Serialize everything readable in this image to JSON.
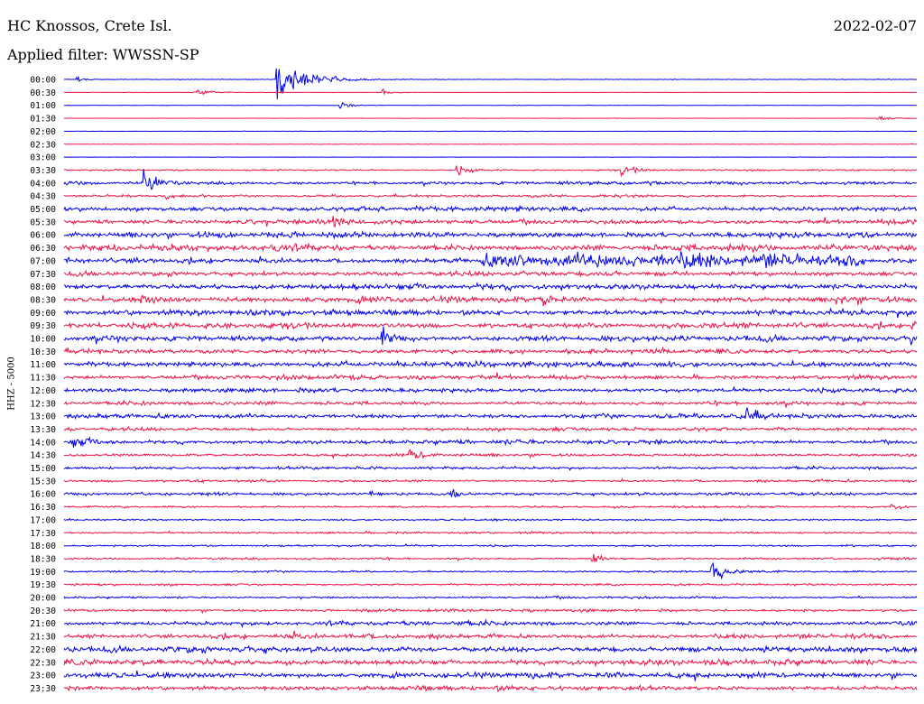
{
  "header": {
    "station": "HC Knossos, Crete Isl.",
    "date": "2022-02-07",
    "filter": "Applied filter: WWSSN-SP"
  },
  "colors": {
    "blue": "#0000ee",
    "red": "#ee1144"
  },
  "chart_data": {
    "type": "helicorder",
    "ylabel": "HHZ - 5000",
    "row_labels": [
      "00:00",
      "00:30",
      "01:00",
      "01:30",
      "02:00",
      "02:30",
      "03:00",
      "03:30",
      "04:00",
      "04:30",
      "05:00",
      "05:30",
      "06:00",
      "06:30",
      "07:00",
      "07:30",
      "08:00",
      "08:30",
      "09:00",
      "09:30",
      "10:00",
      "10:30",
      "11:00",
      "11:30",
      "12:00",
      "12:30",
      "13:00",
      "13:30",
      "14:00",
      "14:30",
      "15:00",
      "15:30",
      "16:00",
      "16:30",
      "17:00",
      "17:30",
      "18:00",
      "18:30",
      "19:00",
      "19:30",
      "20:00",
      "20:30",
      "21:00",
      "21:30",
      "22:00",
      "22:30",
      "23:00",
      "23:30"
    ],
    "row_colors": [
      "blue",
      "red"
    ],
    "noise_levels": [
      0.4,
      0.3,
      0.3,
      0.3,
      0.4,
      0.3,
      0.3,
      1.2,
      2.6,
      2.0,
      3.6,
      3.6,
      4.2,
      4.6,
      4.2,
      3.6,
      4.2,
      4.2,
      4.2,
      4.2,
      4.2,
      3.6,
      4.2,
      3.6,
      3.2,
      2.8,
      3.2,
      2.6,
      3.2,
      2.2,
      2.2,
      1.8,
      2.2,
      1.6,
      1.4,
      1.6,
      1.4,
      1.6,
      1.4,
      1.6,
      1.6,
      2.2,
      3.2,
      3.6,
      4.2,
      4.2,
      4.2,
      3.6
    ],
    "events": [
      {
        "row": 0,
        "x_fraction": 0.016,
        "amplitude": 5,
        "duration_fraction": 0.006
      },
      {
        "row": 0,
        "x_fraction": 0.25,
        "amplitude": 28,
        "duration_fraction": 0.03
      },
      {
        "row": 1,
        "x_fraction": 0.155,
        "amplitude": 4,
        "duration_fraction": 0.02
      },
      {
        "row": 1,
        "x_fraction": 0.375,
        "amplitude": 5,
        "duration_fraction": 0.01
      },
      {
        "row": 2,
        "x_fraction": 0.325,
        "amplitude": 4,
        "duration_fraction": 0.012
      },
      {
        "row": 3,
        "x_fraction": 0.955,
        "amplitude": 3,
        "duration_fraction": 0.015
      },
      {
        "row": 7,
        "x_fraction": 0.46,
        "amplitude": 6,
        "duration_fraction": 0.015
      },
      {
        "row": 7,
        "x_fraction": 0.655,
        "amplitude": 6,
        "duration_fraction": 0.015
      },
      {
        "row": 8,
        "x_fraction": 0.095,
        "amplitude": 14,
        "duration_fraction": 0.012
      },
      {
        "row": 9,
        "x_fraction": 0.12,
        "amplitude": 5,
        "duration_fraction": 0.015
      },
      {
        "row": 11,
        "x_fraction": 0.315,
        "amplitude": 6,
        "duration_fraction": 0.01
      },
      {
        "row": 13,
        "x_fraction": 0.24,
        "amplitude": 6,
        "duration_fraction": 0.02
      },
      {
        "row": 14,
        "x_fraction": 0.49,
        "amplitude": 7,
        "duration_fraction": 0.45
      },
      {
        "row": 17,
        "x_fraction": 0.09,
        "amplitude": 8,
        "duration_fraction": 0.01
      },
      {
        "row": 17,
        "x_fraction": 0.56,
        "amplitude": 8,
        "duration_fraction": 0.015
      },
      {
        "row": 17,
        "x_fraction": 0.905,
        "amplitude": 6,
        "duration_fraction": 0.015
      },
      {
        "row": 19,
        "x_fraction": 0.995,
        "amplitude": 8,
        "duration_fraction": 0.01
      },
      {
        "row": 20,
        "x_fraction": 0.372,
        "amplitude": 16,
        "duration_fraction": 0.01
      },
      {
        "row": 20,
        "x_fraction": 0.995,
        "amplitude": 9,
        "duration_fraction": 0.01
      },
      {
        "row": 26,
        "x_fraction": 0.8,
        "amplitude": 14,
        "duration_fraction": 0.012
      },
      {
        "row": 28,
        "x_fraction": 0.012,
        "amplitude": 6,
        "duration_fraction": 0.02
      },
      {
        "row": 29,
        "x_fraction": 0.405,
        "amplitude": 7,
        "duration_fraction": 0.012
      },
      {
        "row": 32,
        "x_fraction": 0.36,
        "amplitude": 6,
        "duration_fraction": 0.01
      },
      {
        "row": 32,
        "x_fraction": 0.455,
        "amplitude": 7,
        "duration_fraction": 0.01
      },
      {
        "row": 38,
        "x_fraction": 0.76,
        "amplitude": 15,
        "duration_fraction": 0.015
      },
      {
        "row": 37,
        "x_fraction": 0.62,
        "amplitude": 6,
        "duration_fraction": 0.01
      },
      {
        "row": 33,
        "x_fraction": 0.97,
        "amplitude": 5,
        "duration_fraction": 0.01
      }
    ]
  }
}
